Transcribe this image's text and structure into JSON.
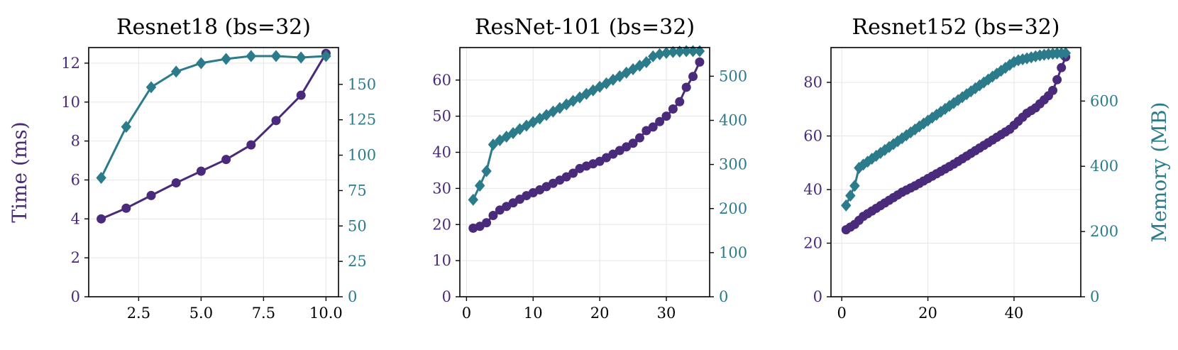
{
  "colors": {
    "time": "#4a2a7a",
    "memory": "#2b7b8a",
    "axis": "#000000",
    "grid": "#e6e6e6",
    "background": "#ffffff"
  },
  "markers": {
    "time": "circle",
    "memory": "diamond"
  },
  "chart_data": [
    {
      "type": "line",
      "title": "Resnet18 (bs=32)",
      "ylabel_left": "Time (ms)",
      "ylabel_right": "",
      "xlim": [
        0.5,
        10.5
      ],
      "ylim_left": [
        0,
        12.8
      ],
      "ylim_right": [
        0,
        176
      ],
      "xticks": [
        2.5,
        5.0,
        7.5,
        10.0
      ],
      "xtick_labels": [
        "2.5",
        "5.0",
        "7.5",
        "10.0"
      ],
      "yticks_left": [
        0,
        2,
        4,
        6,
        8,
        10,
        12
      ],
      "yticks_right": [
        0,
        25,
        50,
        75,
        100,
        125,
        150
      ],
      "grid": true,
      "series": [
        {
          "name": "",
          "axis": "left",
          "marker": "circle",
          "x": [
            1,
            2,
            3,
            4,
            5,
            6,
            7,
            8,
            9,
            10
          ],
          "y": [
            4.0,
            4.55,
            5.2,
            5.85,
            6.45,
            7.05,
            7.8,
            9.05,
            10.35,
            12.5
          ]
        },
        {
          "name": "",
          "axis": "right",
          "marker": "diamond",
          "x": [
            1,
            2,
            3,
            4,
            5,
            6,
            7,
            8,
            9,
            10
          ],
          "y": [
            84,
            120,
            148,
            159,
            165,
            168,
            170,
            170,
            169,
            170
          ]
        }
      ]
    },
    {
      "type": "line",
      "title": "ResNet-101 (bs=32)",
      "ylabel_left": "",
      "ylabel_right": "",
      "xlim": [
        -1,
        36.5
      ],
      "ylim_left": [
        0,
        69
      ],
      "ylim_right": [
        0,
        565
      ],
      "xticks": [
        0,
        10,
        20,
        30
      ],
      "xtick_labels": [
        "0",
        "10",
        "20",
        "30"
      ],
      "yticks_left": [
        0,
        10,
        20,
        30,
        40,
        50,
        60
      ],
      "yticks_right": [
        0,
        100,
        200,
        300,
        400,
        500
      ],
      "grid": true,
      "series": [
        {
          "name": "",
          "axis": "left",
          "marker": "circle",
          "x": [
            1,
            2,
            3,
            4,
            5,
            6,
            7,
            8,
            9,
            10,
            11,
            12,
            13,
            14,
            15,
            16,
            17,
            18,
            19,
            20,
            21,
            22,
            23,
            24,
            25,
            26,
            27,
            28,
            29,
            30,
            31,
            32,
            33,
            34,
            35
          ],
          "y": [
            19,
            19.5,
            20.5,
            22.5,
            24,
            25,
            26,
            27,
            28,
            28.8,
            29.6,
            30.5,
            31.4,
            32.3,
            33.2,
            34.2,
            35.5,
            36.2,
            36.8,
            37.5,
            38.5,
            39.5,
            40.5,
            41.5,
            42.5,
            44,
            46,
            47,
            48.5,
            50,
            52,
            54,
            58,
            61,
            65
          ]
        },
        {
          "name": "",
          "axis": "right",
          "marker": "diamond",
          "x": [
            1,
            2,
            3,
            4,
            5,
            6,
            7,
            8,
            9,
            10,
            11,
            12,
            13,
            14,
            15,
            16,
            17,
            18,
            19,
            20,
            21,
            22,
            23,
            24,
            25,
            26,
            27,
            28,
            29,
            30,
            31,
            32,
            33,
            34,
            35
          ],
          "y": [
            220,
            252,
            285,
            345,
            355,
            363,
            371,
            380,
            388,
            396,
            404,
            412,
            420,
            428,
            436,
            444,
            452,
            460,
            468,
            476,
            484,
            492,
            500,
            508,
            516,
            524,
            532,
            545,
            550,
            553,
            555,
            556,
            557,
            557,
            557
          ]
        }
      ]
    },
    {
      "type": "line",
      "title": "Resnet152 (bs=32)",
      "ylabel_left": "",
      "ylabel_right": "Memory (MB)",
      "xlim": [
        -2.5,
        55.5
      ],
      "ylim_left": [
        0,
        93
      ],
      "ylim_right": [
        0,
        764
      ],
      "xticks": [
        0,
        20,
        40
      ],
      "xtick_labels": [
        "0",
        "20",
        "40"
      ],
      "yticks_left": [
        0,
        20,
        40,
        60,
        80
      ],
      "yticks_right": [
        0,
        200,
        400,
        600
      ],
      "grid": true,
      "series": [
        {
          "name": "",
          "axis": "left",
          "marker": "circle",
          "x": [
            1,
            2,
            3,
            4,
            5,
            6,
            7,
            8,
            9,
            10,
            11,
            12,
            13,
            14,
            15,
            16,
            17,
            18,
            19,
            20,
            21,
            22,
            23,
            24,
            25,
            26,
            27,
            28,
            29,
            30,
            31,
            32,
            33,
            34,
            35,
            36,
            37,
            38,
            39,
            40,
            41,
            42,
            43,
            44,
            45,
            46,
            47,
            48,
            49,
            50,
            51,
            52
          ],
          "y": [
            25,
            26,
            27,
            28.5,
            30,
            31,
            32,
            33,
            34,
            35,
            36,
            37,
            38,
            39,
            39.8,
            40.6,
            41.4,
            42.3,
            43.2,
            44.1,
            45,
            45.9,
            46.8,
            47.7,
            48.6,
            49.5,
            50.5,
            51.5,
            52.5,
            53.5,
            54.5,
            55.5,
            56.5,
            57.5,
            58.5,
            59.5,
            60.5,
            61.5,
            62.5,
            64,
            65.5,
            67,
            68.5,
            69.5,
            70.5,
            72,
            73.5,
            75,
            77,
            81,
            85.5,
            89.5
          ]
        },
        {
          "name": "",
          "axis": "right",
          "marker": "diamond",
          "x": [
            1,
            2,
            3,
            4,
            5,
            6,
            7,
            8,
            9,
            10,
            11,
            12,
            13,
            14,
            15,
            16,
            17,
            18,
            19,
            20,
            21,
            22,
            23,
            24,
            25,
            26,
            27,
            28,
            29,
            30,
            31,
            32,
            33,
            34,
            35,
            36,
            37,
            38,
            39,
            40,
            41,
            42,
            43,
            44,
            45,
            46,
            47,
            48,
            49,
            50,
            51,
            52
          ],
          "y": [
            280,
            310,
            340,
            395,
            405,
            414,
            423,
            432,
            441,
            450,
            459,
            468,
            477,
            486,
            495,
            504,
            513,
            522,
            531,
            540,
            549,
            558,
            567,
            576,
            585,
            594,
            603,
            612,
            621,
            630,
            639,
            648,
            657,
            666,
            675,
            684,
            693,
            702,
            711,
            720,
            725,
            728,
            731,
            734,
            737,
            740,
            742,
            744,
            745,
            746,
            746,
            747
          ]
        }
      ]
    }
  ]
}
